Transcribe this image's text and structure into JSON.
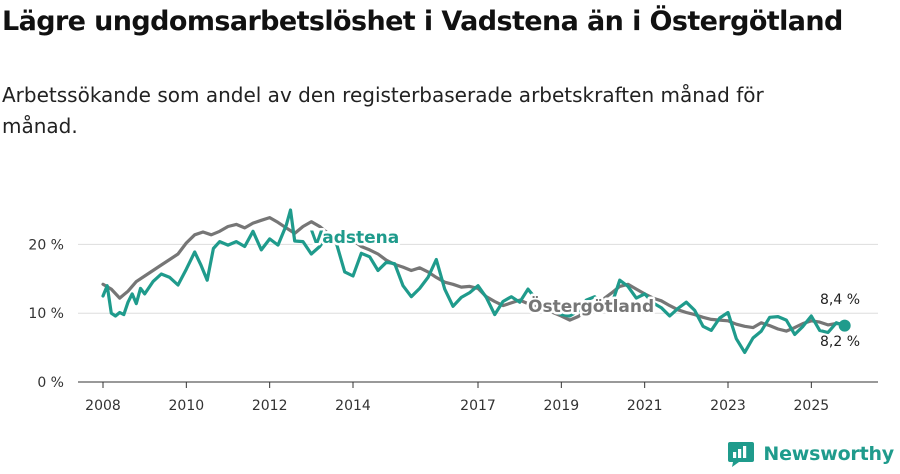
{
  "title": "Lägre ungdomsarbetslöshet i Vadstena än i Östergötland",
  "subtitle": "Arbetssökande som andel av den registerbaserade arbetskraften månad för månad.",
  "brand": {
    "name": "Newsworthy",
    "color": "#1f9b8c"
  },
  "chart_data": {
    "type": "line",
    "title": "Lägre ungdomsarbetslöshet i Vadstena än i Östergötland",
    "xlabel": "",
    "ylabel": "",
    "ylim": [
      0,
      25
    ],
    "xlim": [
      2007.4,
      2026.6
    ],
    "yticks": [
      0,
      10,
      20
    ],
    "ytick_labels": [
      "0 %",
      "10 %",
      "20 %"
    ],
    "xticks": [
      2008,
      2010,
      2012,
      2014,
      2017,
      2019,
      2021,
      2023,
      2025
    ],
    "xtick_labels": [
      "2008",
      "2010",
      "2012",
      "2014",
      "2017",
      "2019",
      "2021",
      "2023",
      "2025"
    ],
    "grid": true,
    "series": [
      {
        "name": "Östergötland",
        "color": "#767676",
        "end_label": "8,4 %",
        "points": [
          [
            2008.0,
            14.2
          ],
          [
            2008.2,
            13.5
          ],
          [
            2008.4,
            12.2
          ],
          [
            2008.6,
            13.2
          ],
          [
            2008.8,
            14.6
          ],
          [
            2009.0,
            15.4
          ],
          [
            2009.2,
            16.2
          ],
          [
            2009.4,
            17.0
          ],
          [
            2009.6,
            17.8
          ],
          [
            2009.8,
            18.6
          ],
          [
            2010.0,
            20.2
          ],
          [
            2010.2,
            21.4
          ],
          [
            2010.4,
            21.8
          ],
          [
            2010.6,
            21.4
          ],
          [
            2010.8,
            21.9
          ],
          [
            2011.0,
            22.6
          ],
          [
            2011.2,
            22.9
          ],
          [
            2011.4,
            22.4
          ],
          [
            2011.6,
            23.1
          ],
          [
            2011.8,
            23.5
          ],
          [
            2012.0,
            23.9
          ],
          [
            2012.2,
            23.2
          ],
          [
            2012.4,
            22.4
          ],
          [
            2012.6,
            21.6
          ],
          [
            2012.8,
            22.6
          ],
          [
            2013.0,
            23.3
          ],
          [
            2013.2,
            22.6
          ],
          [
            2013.4,
            21.6
          ],
          [
            2013.6,
            20.8
          ],
          [
            2013.8,
            21.4
          ],
          [
            2014.0,
            20.6
          ],
          [
            2014.2,
            19.7
          ],
          [
            2014.4,
            19.2
          ],
          [
            2014.6,
            18.6
          ],
          [
            2014.8,
            17.7
          ],
          [
            2015.0,
            17.1
          ],
          [
            2015.2,
            16.7
          ],
          [
            2015.4,
            16.2
          ],
          [
            2015.6,
            16.6
          ],
          [
            2015.8,
            16.0
          ],
          [
            2016.0,
            15.2
          ],
          [
            2016.2,
            14.5
          ],
          [
            2016.4,
            14.2
          ],
          [
            2016.6,
            13.8
          ],
          [
            2016.8,
            13.9
          ],
          [
            2017.0,
            13.6
          ],
          [
            2017.2,
            12.4
          ],
          [
            2017.4,
            11.7
          ],
          [
            2017.6,
            11.1
          ],
          [
            2017.8,
            11.5
          ],
          [
            2018.0,
            11.9
          ],
          [
            2018.2,
            11.4
          ],
          [
            2018.4,
            10.9
          ],
          [
            2018.6,
            10.4
          ],
          [
            2018.8,
            10.1
          ],
          [
            2019.0,
            9.6
          ],
          [
            2019.2,
            9.0
          ],
          [
            2019.4,
            9.5
          ],
          [
            2019.6,
            10.2
          ],
          [
            2019.8,
            11.1
          ],
          [
            2020.0,
            12.0
          ],
          [
            2020.2,
            12.9
          ],
          [
            2020.4,
            13.9
          ],
          [
            2020.6,
            14.2
          ],
          [
            2020.8,
            13.5
          ],
          [
            2021.0,
            12.8
          ],
          [
            2021.2,
            12.2
          ],
          [
            2021.4,
            11.8
          ],
          [
            2021.6,
            11.1
          ],
          [
            2021.8,
            10.5
          ],
          [
            2022.0,
            10.1
          ],
          [
            2022.2,
            9.8
          ],
          [
            2022.4,
            9.4
          ],
          [
            2022.6,
            9.1
          ],
          [
            2022.8,
            9.0
          ],
          [
            2023.0,
            8.9
          ],
          [
            2023.2,
            8.4
          ],
          [
            2023.4,
            8.1
          ],
          [
            2023.6,
            7.9
          ],
          [
            2023.8,
            8.6
          ],
          [
            2024.0,
            8.2
          ],
          [
            2024.2,
            7.7
          ],
          [
            2024.4,
            7.4
          ],
          [
            2024.6,
            7.9
          ],
          [
            2024.8,
            8.5
          ],
          [
            2025.0,
            8.9
          ],
          [
            2025.2,
            8.7
          ],
          [
            2025.4,
            8.3
          ],
          [
            2025.6,
            8.5
          ],
          [
            2025.8,
            8.4
          ]
        ]
      },
      {
        "name": "Vadstena",
        "color": "#1f9b8c",
        "end_label": "8,2 %",
        "points": [
          [
            2008.0,
            12.5
          ],
          [
            2008.1,
            14.0
          ],
          [
            2008.2,
            10.0
          ],
          [
            2008.3,
            9.6
          ],
          [
            2008.4,
            10.1
          ],
          [
            2008.5,
            9.8
          ],
          [
            2008.6,
            11.6
          ],
          [
            2008.7,
            12.8
          ],
          [
            2008.8,
            11.4
          ],
          [
            2008.9,
            13.6
          ],
          [
            2009.0,
            12.8
          ],
          [
            2009.2,
            14.6
          ],
          [
            2009.4,
            15.7
          ],
          [
            2009.6,
            15.2
          ],
          [
            2009.8,
            14.1
          ],
          [
            2010.0,
            16.4
          ],
          [
            2010.2,
            18.9
          ],
          [
            2010.35,
            17.0
          ],
          [
            2010.5,
            14.8
          ],
          [
            2010.65,
            19.4
          ],
          [
            2010.8,
            20.4
          ],
          [
            2011.0,
            19.9
          ],
          [
            2011.2,
            20.4
          ],
          [
            2011.4,
            19.7
          ],
          [
            2011.6,
            21.9
          ],
          [
            2011.8,
            19.2
          ],
          [
            2012.0,
            20.8
          ],
          [
            2012.2,
            19.9
          ],
          [
            2012.4,
            22.8
          ],
          [
            2012.5,
            25.0
          ],
          [
            2012.6,
            20.5
          ],
          [
            2012.8,
            20.4
          ],
          [
            2013.0,
            18.6
          ],
          [
            2013.2,
            19.7
          ],
          [
            2013.4,
            21.4
          ],
          [
            2013.6,
            20.2
          ],
          [
            2013.8,
            16.0
          ],
          [
            2014.0,
            15.4
          ],
          [
            2014.2,
            18.7
          ],
          [
            2014.4,
            18.2
          ],
          [
            2014.6,
            16.2
          ],
          [
            2014.8,
            17.4
          ],
          [
            2015.0,
            17.2
          ],
          [
            2015.2,
            14.0
          ],
          [
            2015.4,
            12.4
          ],
          [
            2015.6,
            13.6
          ],
          [
            2015.8,
            15.2
          ],
          [
            2016.0,
            17.8
          ],
          [
            2016.2,
            13.5
          ],
          [
            2016.4,
            11.0
          ],
          [
            2016.6,
            12.3
          ],
          [
            2016.8,
            13.0
          ],
          [
            2017.0,
            14.0
          ],
          [
            2017.2,
            12.3
          ],
          [
            2017.4,
            9.8
          ],
          [
            2017.6,
            11.7
          ],
          [
            2017.8,
            12.4
          ],
          [
            2018.0,
            11.6
          ],
          [
            2018.2,
            13.5
          ],
          [
            2018.4,
            12.0
          ],
          [
            2018.6,
            11.4
          ],
          [
            2018.8,
            10.5
          ],
          [
            2019.0,
            9.8
          ],
          [
            2019.2,
            9.6
          ],
          [
            2019.4,
            10.3
          ],
          [
            2019.6,
            11.9
          ],
          [
            2019.8,
            12.4
          ],
          [
            2020.0,
            10.9
          ],
          [
            2020.2,
            11.1
          ],
          [
            2020.4,
            14.8
          ],
          [
            2020.6,
            13.9
          ],
          [
            2020.8,
            12.2
          ],
          [
            2021.0,
            12.8
          ],
          [
            2021.2,
            11.5
          ],
          [
            2021.4,
            10.8
          ],
          [
            2021.6,
            9.6
          ],
          [
            2021.8,
            10.7
          ],
          [
            2022.0,
            11.6
          ],
          [
            2022.2,
            10.4
          ],
          [
            2022.4,
            8.1
          ],
          [
            2022.6,
            7.5
          ],
          [
            2022.8,
            9.3
          ],
          [
            2023.0,
            10.1
          ],
          [
            2023.2,
            6.3
          ],
          [
            2023.4,
            4.3
          ],
          [
            2023.6,
            6.4
          ],
          [
            2023.8,
            7.4
          ],
          [
            2024.0,
            9.4
          ],
          [
            2024.2,
            9.5
          ],
          [
            2024.4,
            9.0
          ],
          [
            2024.6,
            6.9
          ],
          [
            2024.8,
            8.1
          ],
          [
            2025.0,
            9.6
          ],
          [
            2025.2,
            7.5
          ],
          [
            2025.4,
            7.2
          ],
          [
            2025.6,
            8.6
          ],
          [
            2025.8,
            8.2
          ]
        ]
      }
    ]
  }
}
